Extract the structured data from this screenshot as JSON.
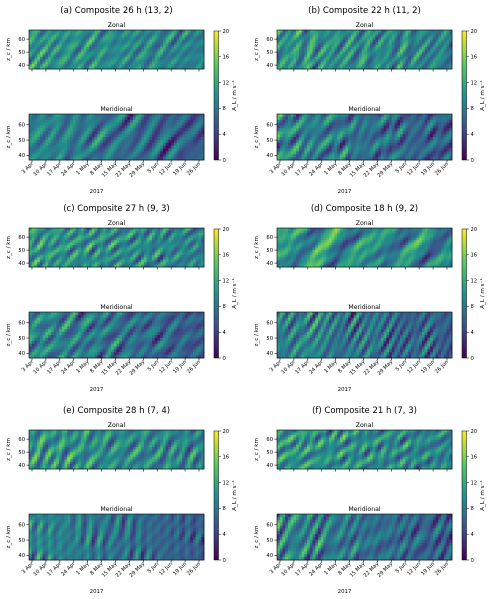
{
  "figure": {
    "panels": [
      {
        "title": "(a) Composite 26 h (13, 2)"
      },
      {
        "title": "(b) Composite 22 h (11, 2)"
      },
      {
        "title": "(c) Composite 27 h (9, 3)"
      },
      {
        "title": "(d) Composite 18 h (9, 2)"
      },
      {
        "title": "(e) Composite 28 h (7, 4)"
      },
      {
        "title": "(f) Composite 21 h (7, 3)"
      }
    ],
    "subplot_titles": [
      "Zonal",
      "Meridional"
    ],
    "ylabel": "z_c / km",
    "xlabel": "2017",
    "colorbar_label": "A_L / m s⁻¹",
    "colormap_colors": [
      "#440154",
      "#3b528b",
      "#21918c",
      "#5ec962",
      "#fde725"
    ]
  },
  "chart_data": [
    {
      "type": "heatmap",
      "title": "(a) Composite 26 h (13, 2)",
      "subplots": [
        "Zonal",
        "Meridional"
      ],
      "xlabel": "2017",
      "ylabel": "z_c / km",
      "x_ticks": [
        "3 Apr",
        "10 Apr",
        "17 Apr",
        "24 Apr",
        "1 May",
        "8 May",
        "15 May",
        "22 May",
        "29 May",
        "5 Jun",
        "12 Jun",
        "19 Jun",
        "26 Jun"
      ],
      "y_ticks": [
        40,
        50,
        60
      ],
      "ylim": [
        37,
        67
      ],
      "colorbar_ticks": [
        0,
        4,
        8,
        12,
        16,
        20
      ],
      "clim": [
        0,
        20
      ],
      "colorbar_label": "A_L / m s⁻¹"
    },
    {
      "type": "heatmap",
      "title": "(b) Composite 22 h (11, 2)",
      "subplots": [
        "Zonal",
        "Meridional"
      ],
      "xlabel": "2017",
      "ylabel": "z_c / km",
      "x_ticks": [
        "3 Apr",
        "10 Apr",
        "17 Apr",
        "24 Apr",
        "1 May",
        "8 May",
        "15 May",
        "22 May",
        "29 May",
        "5 Jun",
        "12 Jun",
        "19 Jun",
        "26 Jun"
      ],
      "y_ticks": [
        40,
        50,
        60
      ],
      "ylim": [
        37,
        67
      ],
      "colorbar_ticks": [
        0,
        4,
        8,
        12,
        16,
        20
      ],
      "clim": [
        0,
        20
      ],
      "colorbar_label": "A_L / m s⁻¹"
    },
    {
      "type": "heatmap",
      "title": "(c) Composite 27 h (9, 3)",
      "subplots": [
        "Zonal",
        "Meridional"
      ],
      "xlabel": "2017",
      "ylabel": "z_c / km",
      "x_ticks": [
        "3 Apr",
        "10 Apr",
        "17 Apr",
        "24 Apr",
        "1 May",
        "8 May",
        "15 May",
        "22 May",
        "29 May",
        "5 Jun",
        "12 Jun",
        "19 Jun",
        "26 Jun"
      ],
      "y_ticks": [
        40,
        50,
        60
      ],
      "ylim": [
        37,
        67
      ],
      "colorbar_ticks": [
        0,
        4,
        8,
        12,
        16,
        20
      ],
      "clim": [
        0,
        20
      ],
      "colorbar_label": "A_L / m s⁻¹"
    },
    {
      "type": "heatmap",
      "title": "(d) Composite 18 h (9, 2)",
      "subplots": [
        "Zonal",
        "Meridional"
      ],
      "xlabel": "2017",
      "ylabel": "z_c / km",
      "x_ticks": [
        "3 Apr",
        "10 Apr",
        "17 Apr",
        "24 Apr",
        "1 May",
        "8 May",
        "15 May",
        "22 May",
        "29 May",
        "5 Jun",
        "12 Jun",
        "19 Jun",
        "26 Jun"
      ],
      "y_ticks": [
        40,
        50,
        60
      ],
      "ylim": [
        37,
        67
      ],
      "colorbar_ticks": [
        0,
        4,
        8,
        12,
        16,
        20
      ],
      "clim": [
        0,
        20
      ],
      "colorbar_label": "A_L / m s⁻¹"
    },
    {
      "type": "heatmap",
      "title": "(e) Composite 28 h (7, 4)",
      "subplots": [
        "Zonal",
        "Meridional"
      ],
      "xlabel": "2017",
      "ylabel": "z_c / km",
      "x_ticks": [
        "3 Apr",
        "10 Apr",
        "17 Apr",
        "24 Apr",
        "1 May",
        "8 May",
        "15 May",
        "22 May",
        "29 May",
        "5 Jun",
        "12 Jun",
        "19 Jun",
        "26 Jun"
      ],
      "y_ticks": [
        40,
        50,
        60
      ],
      "ylim": [
        37,
        67
      ],
      "colorbar_ticks": [
        0,
        4,
        8,
        12,
        16,
        20
      ],
      "clim": [
        0,
        20
      ],
      "colorbar_label": "A_L / m s⁻¹"
    },
    {
      "type": "heatmap",
      "title": "(f) Composite 21 h (7, 3)",
      "subplots": [
        "Zonal",
        "Meridional"
      ],
      "xlabel": "2017",
      "ylabel": "z_c / km",
      "x_ticks": [
        "3 Apr",
        "10 Apr",
        "17 Apr",
        "24 Apr",
        "1 May",
        "8 May",
        "15 May",
        "22 May",
        "29 May",
        "5 Jun",
        "12 Jun",
        "19 Jun",
        "26 Jun"
      ],
      "y_ticks": [
        40,
        50,
        60
      ],
      "ylim": [
        37,
        67
      ],
      "colorbar_ticks": [
        0,
        4,
        8,
        12,
        16,
        20
      ],
      "clim": [
        0,
        20
      ],
      "colorbar_label": "A_L / m s⁻¹"
    }
  ]
}
